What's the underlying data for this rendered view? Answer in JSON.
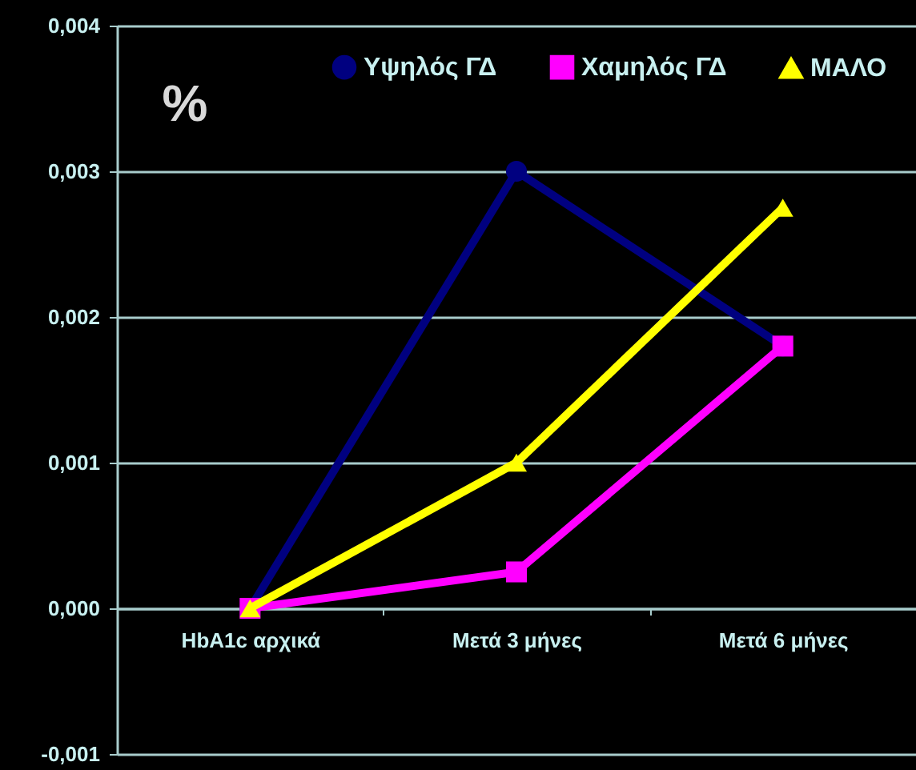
{
  "chart_data": {
    "type": "line",
    "ylabel": "%",
    "categories": [
      "HbA1c αρχικά",
      "Μετά 3 μήνες",
      "Μετά 6 μήνες"
    ],
    "series": [
      {
        "name": "Υψηλός ΓΔ",
        "color": "#000080",
        "marker": "circle",
        "values": [
          0,
          0.003,
          0.0018
        ]
      },
      {
        "name": "Χαμηλός ΓΔ",
        "color": "#ff00ff",
        "marker": "square",
        "values": [
          0,
          0.00025,
          0.0018
        ]
      },
      {
        "name": "ΜΑΛΟ",
        "color": "#ffff00",
        "marker": "triangle",
        "values": [
          0,
          0.001,
          0.00275
        ]
      }
    ],
    "ylim": [
      -0.001,
      0.004
    ],
    "yticks": [
      {
        "value": -0.001,
        "label": "-0,001"
      },
      {
        "value": 0,
        "label": "0,000"
      },
      {
        "value": 0.001,
        "label": "0,001"
      },
      {
        "value": 0.002,
        "label": "0,002"
      },
      {
        "value": 0.003,
        "label": "0,003"
      },
      {
        "value": 0.004,
        "label": "0,004"
      }
    ],
    "grid": "y",
    "legend": "top right",
    "line_style": "solid"
  }
}
